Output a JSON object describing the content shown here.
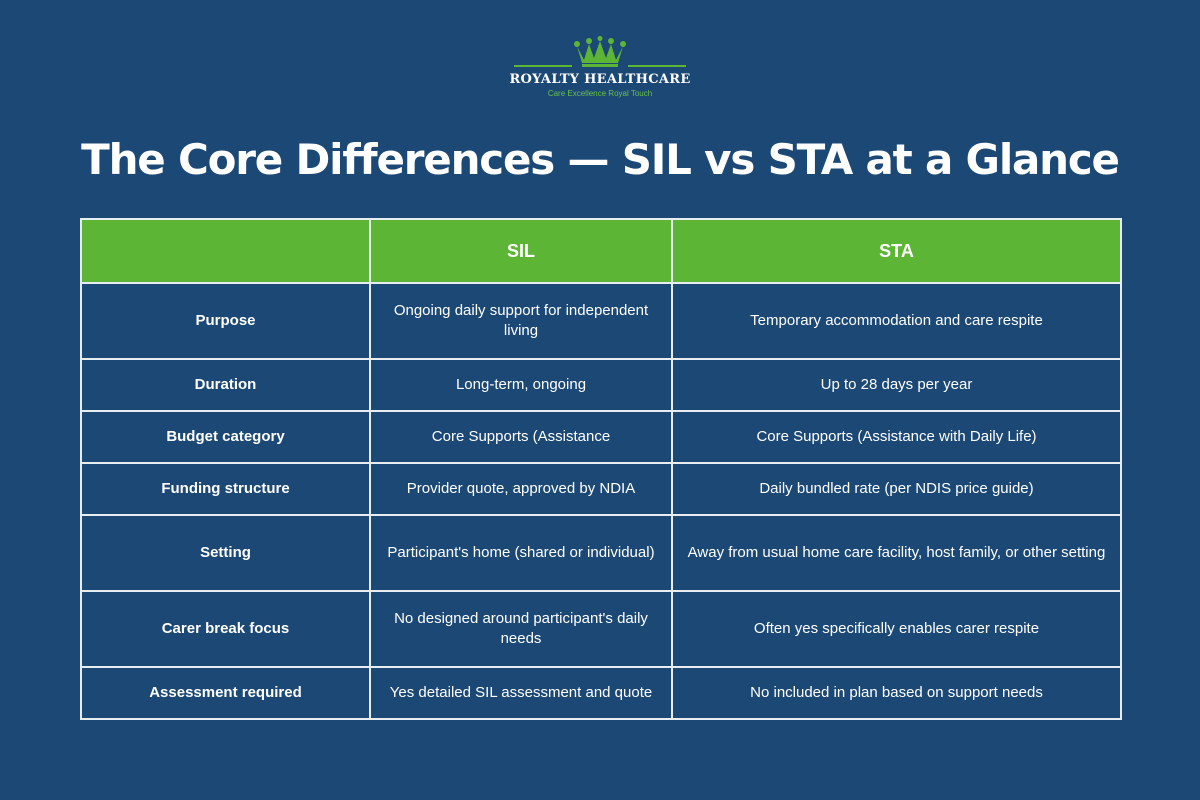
{
  "brand": {
    "name": "ROYALTY HEALTHCARE",
    "tagline": "Care Excellence Royal Touch",
    "logo_icon": "crown-icon",
    "accent_color": "#5db536"
  },
  "title": "The Core Differences — SIL vs STA at a Glance",
  "colors": {
    "background": "#1b4874",
    "header_fill": "#5db536",
    "grid_lines": "#e8edf2"
  },
  "table": {
    "headers": [
      "",
      "SIL",
      "STA"
    ],
    "rows": [
      {
        "label": "Purpose",
        "sil": "Ongoing daily support for independent living",
        "sta": "Temporary accommodation and care respite"
      },
      {
        "label": "Duration",
        "sil": "Long-term, ongoing",
        "sta": "Up to 28 days per year"
      },
      {
        "label": "Budget category",
        "sil": "Core Supports (Assistance",
        "sta": "Core Supports (Assistance with Daily Life)"
      },
      {
        "label": "Funding structure",
        "sil": "Provider quote, approved by NDIA",
        "sta": "Daily bundled rate (per NDIS price guide)"
      },
      {
        "label": "Setting",
        "sil": "Participant's home (shared or individual)",
        "sta": "Away from usual home care facility, host family, or other setting"
      },
      {
        "label": "Carer break focus",
        "sil": "No designed around participant's daily needs",
        "sta": "Often yes specifically enables carer respite"
      },
      {
        "label": "Assessment required",
        "sil": "Yes detailed SIL assessment and quote",
        "sta": "No included in plan based on support needs"
      }
    ]
  }
}
